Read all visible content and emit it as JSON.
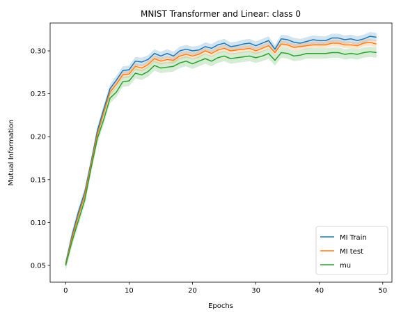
{
  "chart_data": {
    "type": "line",
    "title": "MNIST Transformer and Linear: class 0",
    "xlabel": "Epochs",
    "ylabel": "Mutual Information",
    "xlim": [
      -2.45,
      51.45
    ],
    "ylim": [
      0.0305,
      0.3325
    ],
    "xticks": [
      0,
      10,
      20,
      30,
      40,
      50
    ],
    "yticks": [
      0.05,
      0.1,
      0.15,
      0.2,
      0.25,
      0.3
    ],
    "ytick_labels": [
      "0.05",
      "0.10",
      "0.15",
      "0.20",
      "0.25",
      "0.30"
    ],
    "grid": false,
    "legend_position": "lower-right",
    "x": [
      0,
      1,
      2,
      3,
      4,
      5,
      6,
      7,
      8,
      9,
      10,
      11,
      12,
      13,
      14,
      15,
      16,
      17,
      18,
      19,
      20,
      21,
      22,
      23,
      24,
      25,
      26,
      27,
      28,
      29,
      30,
      31,
      32,
      33,
      34,
      35,
      36,
      37,
      38,
      39,
      40,
      41,
      42,
      43,
      44,
      45,
      46,
      47,
      48,
      49
    ],
    "series": [
      {
        "name": "MI Train",
        "color": "#1f77b4",
        "values": [
          0.052,
          0.085,
          0.112,
          0.135,
          0.17,
          0.207,
          0.232,
          0.256,
          0.266,
          0.277,
          0.278,
          0.288,
          0.287,
          0.29,
          0.297,
          0.294,
          0.297,
          0.294,
          0.3,
          0.302,
          0.3,
          0.301,
          0.305,
          0.303,
          0.307,
          0.309,
          0.305,
          0.306,
          0.308,
          0.309,
          0.306,
          0.309,
          0.312,
          0.302,
          0.314,
          0.313,
          0.31,
          0.309,
          0.311,
          0.313,
          0.312,
          0.312,
          0.315,
          0.315,
          0.313,
          0.314,
          0.312,
          0.314,
          0.317,
          0.316
        ],
        "band": 0.005
      },
      {
        "name": "MI test",
        "color": "#ff7f0e",
        "values": [
          0.051,
          0.082,
          0.108,
          0.132,
          0.167,
          0.203,
          0.228,
          0.252,
          0.261,
          0.272,
          0.273,
          0.282,
          0.28,
          0.284,
          0.291,
          0.288,
          0.29,
          0.289,
          0.294,
          0.296,
          0.294,
          0.296,
          0.3,
          0.297,
          0.301,
          0.303,
          0.3,
          0.301,
          0.302,
          0.303,
          0.3,
          0.303,
          0.306,
          0.298,
          0.308,
          0.307,
          0.304,
          0.305,
          0.306,
          0.307,
          0.307,
          0.307,
          0.309,
          0.309,
          0.307,
          0.307,
          0.306,
          0.309,
          0.31,
          0.308
        ],
        "band": 0.004
      },
      {
        "name": "mu",
        "color": "#2ca02c",
        "values": [
          0.05,
          0.078,
          0.102,
          0.126,
          0.163,
          0.198,
          0.22,
          0.245,
          0.252,
          0.264,
          0.265,
          0.274,
          0.272,
          0.276,
          0.283,
          0.28,
          0.281,
          0.282,
          0.286,
          0.288,
          0.285,
          0.288,
          0.291,
          0.288,
          0.292,
          0.294,
          0.291,
          0.292,
          0.293,
          0.294,
          0.292,
          0.294,
          0.297,
          0.289,
          0.298,
          0.297,
          0.294,
          0.295,
          0.297,
          0.297,
          0.297,
          0.297,
          0.298,
          0.298,
          0.296,
          0.297,
          0.296,
          0.298,
          0.299,
          0.298
        ],
        "band": 0.006
      }
    ]
  }
}
